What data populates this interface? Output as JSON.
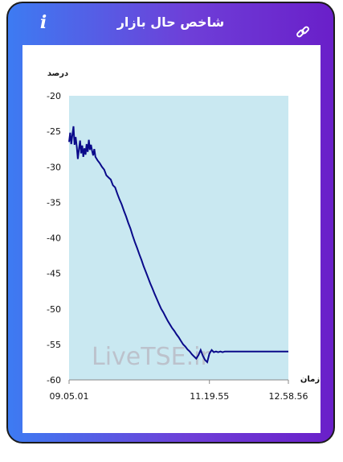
{
  "header": {
    "title": "شاخص حال بازار",
    "info_icon": "info-icon",
    "link_icon": "link-icon"
  },
  "watermark": "LiveTSE.ir",
  "colors": {
    "gradient_start": "#3d7bf2",
    "gradient_end": "#6a1fc9",
    "area_fill": "#c9e8f1",
    "line": "#0a0a8a"
  },
  "chart_data": {
    "type": "line",
    "ylabel": "درصد",
    "xlabel": "زمان",
    "ylim": [
      -60,
      -20
    ],
    "yticks": [
      -20,
      -25,
      -30,
      -35,
      -40,
      -45,
      -50,
      -55,
      -60
    ],
    "xticks": [
      "09.05.01",
      "11.19.55",
      "12.58.56"
    ],
    "xtick_positions": [
      0,
      0.64,
      1.0
    ],
    "grid": false,
    "legend": "none",
    "series": [
      {
        "x": [
          0,
          0.005,
          0.01,
          0.015,
          0.02,
          0.025,
          0.03,
          0.035,
          0.04,
          0.045,
          0.05,
          0.055,
          0.06,
          0.065,
          0.07,
          0.075,
          0.08,
          0.085,
          0.09,
          0.095,
          0.1,
          0.105,
          0.11,
          0.115,
          0.12,
          0.13,
          0.14,
          0.15,
          0.16,
          0.17,
          0.18,
          0.19,
          0.2,
          0.21,
          0.22,
          0.23,
          0.24,
          0.25,
          0.26,
          0.27,
          0.28,
          0.29,
          0.3,
          0.31,
          0.32,
          0.33,
          0.34,
          0.35,
          0.36,
          0.37,
          0.38,
          0.39,
          0.4,
          0.41,
          0.42,
          0.43,
          0.44,
          0.45,
          0.46,
          0.47,
          0.48,
          0.49,
          0.5,
          0.51,
          0.52,
          0.53,
          0.54,
          0.55,
          0.56,
          0.57,
          0.58,
          0.59,
          0.6,
          0.61,
          0.62,
          0.63,
          0.64,
          0.65,
          0.66,
          0.67,
          0.68,
          0.69,
          0.7,
          0.71,
          0.72,
          0.73,
          0.74,
          0.75,
          0.76,
          0.77,
          0.78,
          0.79,
          0.8,
          0.81,
          0.82,
          0.83,
          0.84,
          0.85,
          0.86,
          0.87,
          0.88,
          0.89,
          0.9,
          0.92,
          0.94,
          0.96,
          0.98,
          1.0
        ],
        "y": [
          -26.5,
          -25.2,
          -26.8,
          -25.5,
          -24.3,
          -26.9,
          -25.8,
          -27.2,
          -28.9,
          -27.5,
          -26.3,
          -28.1,
          -27.0,
          -28.6,
          -27.4,
          -28.3,
          -26.8,
          -27.9,
          -26.2,
          -27.6,
          -26.9,
          -27.8,
          -28.4,
          -27.5,
          -28.6,
          -29.1,
          -29.5,
          -30.0,
          -30.4,
          -31.2,
          -31.5,
          -31.8,
          -32.6,
          -32.9,
          -33.8,
          -34.6,
          -35.3,
          -36.2,
          -37.0,
          -37.9,
          -38.7,
          -39.7,
          -40.6,
          -41.4,
          -42.3,
          -43.1,
          -44.0,
          -44.8,
          -45.6,
          -46.4,
          -47.1,
          -47.9,
          -48.6,
          -49.3,
          -50.0,
          -50.5,
          -51.1,
          -51.7,
          -52.2,
          -52.7,
          -53.1,
          -53.6,
          -54.0,
          -54.5,
          -55.0,
          -55.3,
          -55.7,
          -56.0,
          -56.4,
          -56.7,
          -57.0,
          -56.5,
          -55.8,
          -56.6,
          -57.2,
          -57.5,
          -56.3,
          -55.8,
          -56.1,
          -56.0,
          -56.1,
          -56.0,
          -56.1,
          -56.0,
          -56.0,
          -56.0,
          -56.0,
          -56.0,
          -56.0,
          -56.0,
          -56.0,
          -56.0,
          -56.0,
          -56.0,
          -56.0,
          -56.0,
          -56.0,
          -56.0,
          -56.0,
          -56.0,
          -56.0,
          -56.0,
          -56.0,
          -56.0,
          -56.0,
          -56.0,
          -56.0,
          -56.0
        ]
      }
    ]
  }
}
